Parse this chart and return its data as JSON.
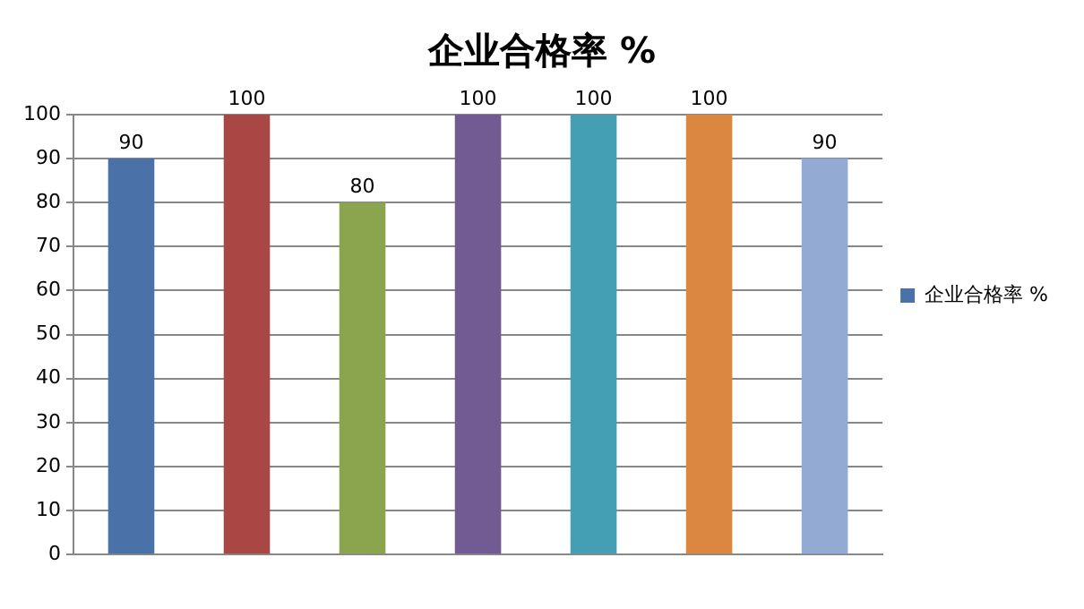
{
  "chart_data": {
    "type": "bar",
    "title": "企业合格率 %",
    "categories": [
      null,
      null,
      null,
      null,
      null,
      null,
      null
    ],
    "series": [
      {
        "name": "企业合格率 %",
        "colors": [
          "#4a72a8",
          "#a94744",
          "#8ba54e",
          "#725a93",
          "#449eb4",
          "#db8740",
          "#93aad2"
        ],
        "values": [
          90,
          100,
          80,
          100,
          100,
          100,
          90
        ]
      }
    ],
    "ylim": [
      0,
      100
    ],
    "yticks": [
      0,
      10,
      20,
      30,
      40,
      50,
      60,
      70,
      80,
      90,
      100
    ],
    "grid": "y",
    "legend": "right",
    "data_labels": true
  }
}
